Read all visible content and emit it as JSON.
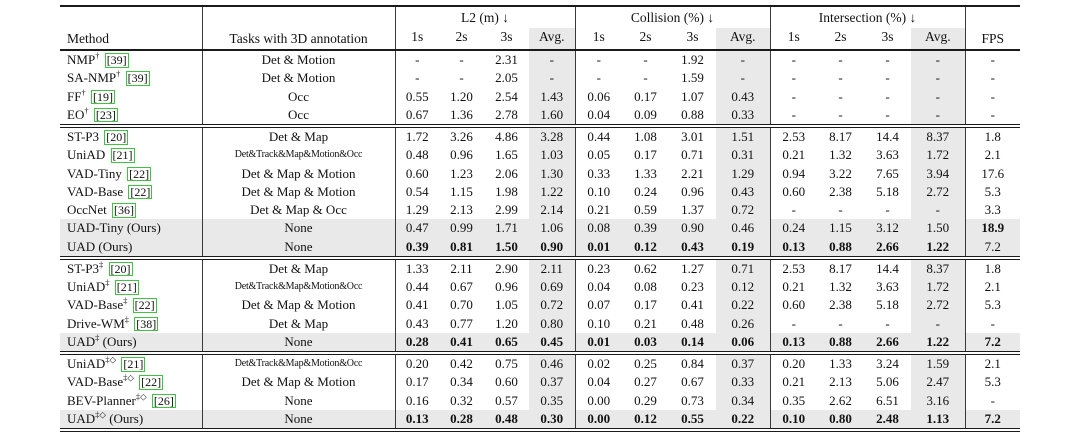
{
  "table": {
    "headers": {
      "method": "Method",
      "tasks": "Tasks with 3D annotation",
      "fps": "FPS",
      "groups": [
        {
          "label": "L2 (m) ↓",
          "cols": [
            "1s",
            "2s",
            "3s",
            "Avg."
          ]
        },
        {
          "label": "Collision (%) ↓",
          "cols": [
            "1s",
            "2s",
            "3s",
            "Avg."
          ]
        },
        {
          "label": "Intersection (%) ↓",
          "cols": [
            "1s",
            "2s",
            "3s",
            "Avg."
          ]
        }
      ]
    },
    "accent_colors": {
      "citation_box": "#3fc43f",
      "shading": "#e9e9e9"
    },
    "sections": [
      {
        "rows": [
          {
            "method": "NMP",
            "sup": "†",
            "cite": "[39]",
            "tasks": "Det & Motion",
            "l2": [
              "-",
              "-",
              "2.31",
              "-"
            ],
            "col": [
              "-",
              "-",
              "1.92",
              "-"
            ],
            "int": [
              "-",
              "-",
              "-",
              "-"
            ],
            "fps": "-"
          },
          {
            "method": "SA-NMP",
            "sup": "†",
            "cite": "[39]",
            "tasks": "Det & Motion",
            "l2": [
              "-",
              "-",
              "2.05",
              "-"
            ],
            "col": [
              "-",
              "-",
              "1.59",
              "-"
            ],
            "int": [
              "-",
              "-",
              "-",
              "-"
            ],
            "fps": "-"
          },
          {
            "method": "FF",
            "sup": "†",
            "cite": "[19]",
            "tasks": "Occ",
            "l2": [
              "0.55",
              "1.20",
              "2.54",
              "1.43"
            ],
            "col": [
              "0.06",
              "0.17",
              "1.07",
              "0.43"
            ],
            "int": [
              "-",
              "-",
              "-",
              "-"
            ],
            "fps": "-"
          },
          {
            "method": "EO",
            "sup": "†",
            "cite": "[23]",
            "tasks": "Occ",
            "l2": [
              "0.67",
              "1.36",
              "2.78",
              "1.60"
            ],
            "col": [
              "0.04",
              "0.09",
              "0.88",
              "0.33"
            ],
            "int": [
              "-",
              "-",
              "-",
              "-"
            ],
            "fps": "-"
          }
        ]
      },
      {
        "rows": [
          {
            "method": "ST-P3",
            "sup": "",
            "cite": "[20]",
            "tasks": "Det & Map",
            "l2": [
              "1.72",
              "3.26",
              "4.86",
              "3.28"
            ],
            "col": [
              "0.44",
              "1.08",
              "3.01",
              "1.51"
            ],
            "int": [
              "2.53",
              "8.17",
              "14.4",
              "8.37"
            ],
            "fps": "1.8"
          },
          {
            "method": "UniAD",
            "sup": "",
            "cite": "[21]",
            "tasks": "Det&Track&Map&Motion&Occ",
            "tasks_small": true,
            "l2": [
              "0.48",
              "0.96",
              "1.65",
              "1.03"
            ],
            "col": [
              "0.05",
              "0.17",
              "0.71",
              "0.31"
            ],
            "int": [
              "0.21",
              "1.32",
              "3.63",
              "1.72"
            ],
            "fps": "2.1"
          },
          {
            "method": "VAD-Tiny",
            "sup": "",
            "cite": "[22]",
            "tasks": "Det & Map & Motion",
            "l2": [
              "0.60",
              "1.23",
              "2.06",
              "1.30"
            ],
            "col": [
              "0.33",
              "1.33",
              "2.21",
              "1.29"
            ],
            "int": [
              "0.94",
              "3.22",
              "7.65",
              "3.94"
            ],
            "fps": "17.6"
          },
          {
            "method": "VAD-Base",
            "sup": "",
            "cite": "[22]",
            "tasks": "Det & Map & Motion",
            "l2": [
              "0.54",
              "1.15",
              "1.98",
              "1.22"
            ],
            "col": [
              "0.10",
              "0.24",
              "0.96",
              "0.43"
            ],
            "int": [
              "0.60",
              "2.38",
              "5.18",
              "2.72"
            ],
            "fps": "5.3"
          },
          {
            "method": "OccNet",
            "sup": "",
            "cite": "[36]",
            "tasks": "Det & Map & Occ",
            "l2": [
              "1.29",
              "2.13",
              "2.99",
              "2.14"
            ],
            "col": [
              "0.21",
              "0.59",
              "1.37",
              "0.72"
            ],
            "int": [
              "-",
              "-",
              "-",
              "-"
            ],
            "fps": "3.3"
          },
          {
            "method": "UAD-Tiny",
            "sup": "",
            "suffix": "(Ours)",
            "tasks": "None",
            "ours": true,
            "l2": [
              "0.47",
              "0.99",
              "1.71",
              "1.06"
            ],
            "col": [
              "0.08",
              "0.39",
              "0.90",
              "0.46"
            ],
            "int": [
              "0.24",
              "1.15",
              "3.12",
              "1.50"
            ],
            "fps": "18.9",
            "bold": {
              "fps": true
            }
          },
          {
            "method": "UAD",
            "sup": "",
            "suffix": "(Ours)",
            "tasks": "None",
            "ours": true,
            "l2": [
              "0.39",
              "0.81",
              "1.50",
              "0.90"
            ],
            "col": [
              "0.01",
              "0.12",
              "0.43",
              "0.19"
            ],
            "int": [
              "0.13",
              "0.88",
              "2.66",
              "1.22"
            ],
            "fps": "7.2",
            "bold": {
              "l2": true,
              "col": true,
              "int": true
            }
          }
        ]
      },
      {
        "rows": [
          {
            "method": "ST-P3",
            "sup": "‡",
            "cite": "[20]",
            "tasks": "Det & Map",
            "l2": [
              "1.33",
              "2.11",
              "2.90",
              "2.11"
            ],
            "col": [
              "0.23",
              "0.62",
              "1.27",
              "0.71"
            ],
            "int": [
              "2.53",
              "8.17",
              "14.4",
              "8.37"
            ],
            "fps": "1.8"
          },
          {
            "method": "UniAD",
            "sup": "‡",
            "cite": "[21]",
            "tasks": "Det&Track&Map&Motion&Occ",
            "tasks_small": true,
            "l2": [
              "0.44",
              "0.67",
              "0.96",
              "0.69"
            ],
            "col": [
              "0.04",
              "0.08",
              "0.23",
              "0.12"
            ],
            "int": [
              "0.21",
              "1.32",
              "3.63",
              "1.72"
            ],
            "fps": "2.1"
          },
          {
            "method": "VAD-Base",
            "sup": "‡",
            "cite": "[22]",
            "tasks": "Det & Map & Motion",
            "l2": [
              "0.41",
              "0.70",
              "1.05",
              "0.72"
            ],
            "col": [
              "0.07",
              "0.17",
              "0.41",
              "0.22"
            ],
            "int": [
              "0.60",
              "2.38",
              "5.18",
              "2.72"
            ],
            "fps": "5.3"
          },
          {
            "method": "Drive-WM",
            "sup": "‡",
            "cite": "[38]",
            "tasks": "Det & Map",
            "l2": [
              "0.43",
              "0.77",
              "1.20",
              "0.80"
            ],
            "col": [
              "0.10",
              "0.21",
              "0.48",
              "0.26"
            ],
            "int": [
              "-",
              "-",
              "-",
              "-"
            ],
            "fps": "-"
          },
          {
            "method": "UAD",
            "sup": "‡",
            "suffix": "(Ours)",
            "tasks": "None",
            "ours": true,
            "l2": [
              "0.28",
              "0.41",
              "0.65",
              "0.45"
            ],
            "col": [
              "0.01",
              "0.03",
              "0.14",
              "0.06"
            ],
            "int": [
              "0.13",
              "0.88",
              "2.66",
              "1.22"
            ],
            "fps": "7.2",
            "bold": {
              "l2": true,
              "col": true,
              "int": true,
              "fps": true
            }
          }
        ]
      },
      {
        "rows": [
          {
            "method": "UniAD",
            "sup": "‡◇",
            "cite": "[21]",
            "tasks": "Det&Track&Map&Motion&Occ",
            "tasks_small": true,
            "l2": [
              "0.20",
              "0.42",
              "0.75",
              "0.46"
            ],
            "col": [
              "0.02",
              "0.25",
              "0.84",
              "0.37"
            ],
            "int": [
              "0.20",
              "1.33",
              "3.24",
              "1.59"
            ],
            "fps": "2.1"
          },
          {
            "method": "VAD-Base",
            "sup": "‡◇",
            "cite": "[22]",
            "tasks": "Det & Map & Motion",
            "l2": [
              "0.17",
              "0.34",
              "0.60",
              "0.37"
            ],
            "col": [
              "0.04",
              "0.27",
              "0.67",
              "0.33"
            ],
            "int": [
              "0.21",
              "2.13",
              "5.06",
              "2.47"
            ],
            "fps": "5.3"
          },
          {
            "method": "BEV-Planner",
            "sup": "‡◇",
            "cite": "[26]",
            "tasks": "None",
            "l2": [
              "0.16",
              "0.32",
              "0.57",
              "0.35"
            ],
            "col": [
              "0.00",
              "0.29",
              "0.73",
              "0.34"
            ],
            "int": [
              "0.35",
              "2.62",
              "6.51",
              "3.16"
            ],
            "fps": "-"
          },
          {
            "method": "UAD",
            "sup": "‡◇",
            "suffix": "(Ours)",
            "tasks": "None",
            "ours": true,
            "l2": [
              "0.13",
              "0.28",
              "0.48",
              "0.30"
            ],
            "col": [
              "0.00",
              "0.12",
              "0.55",
              "0.22"
            ],
            "int": [
              "0.10",
              "0.80",
              "2.48",
              "1.13"
            ],
            "fps": "7.2",
            "bold": {
              "l2": true,
              "col": true,
              "int": true,
              "fps": true
            }
          }
        ]
      }
    ]
  }
}
